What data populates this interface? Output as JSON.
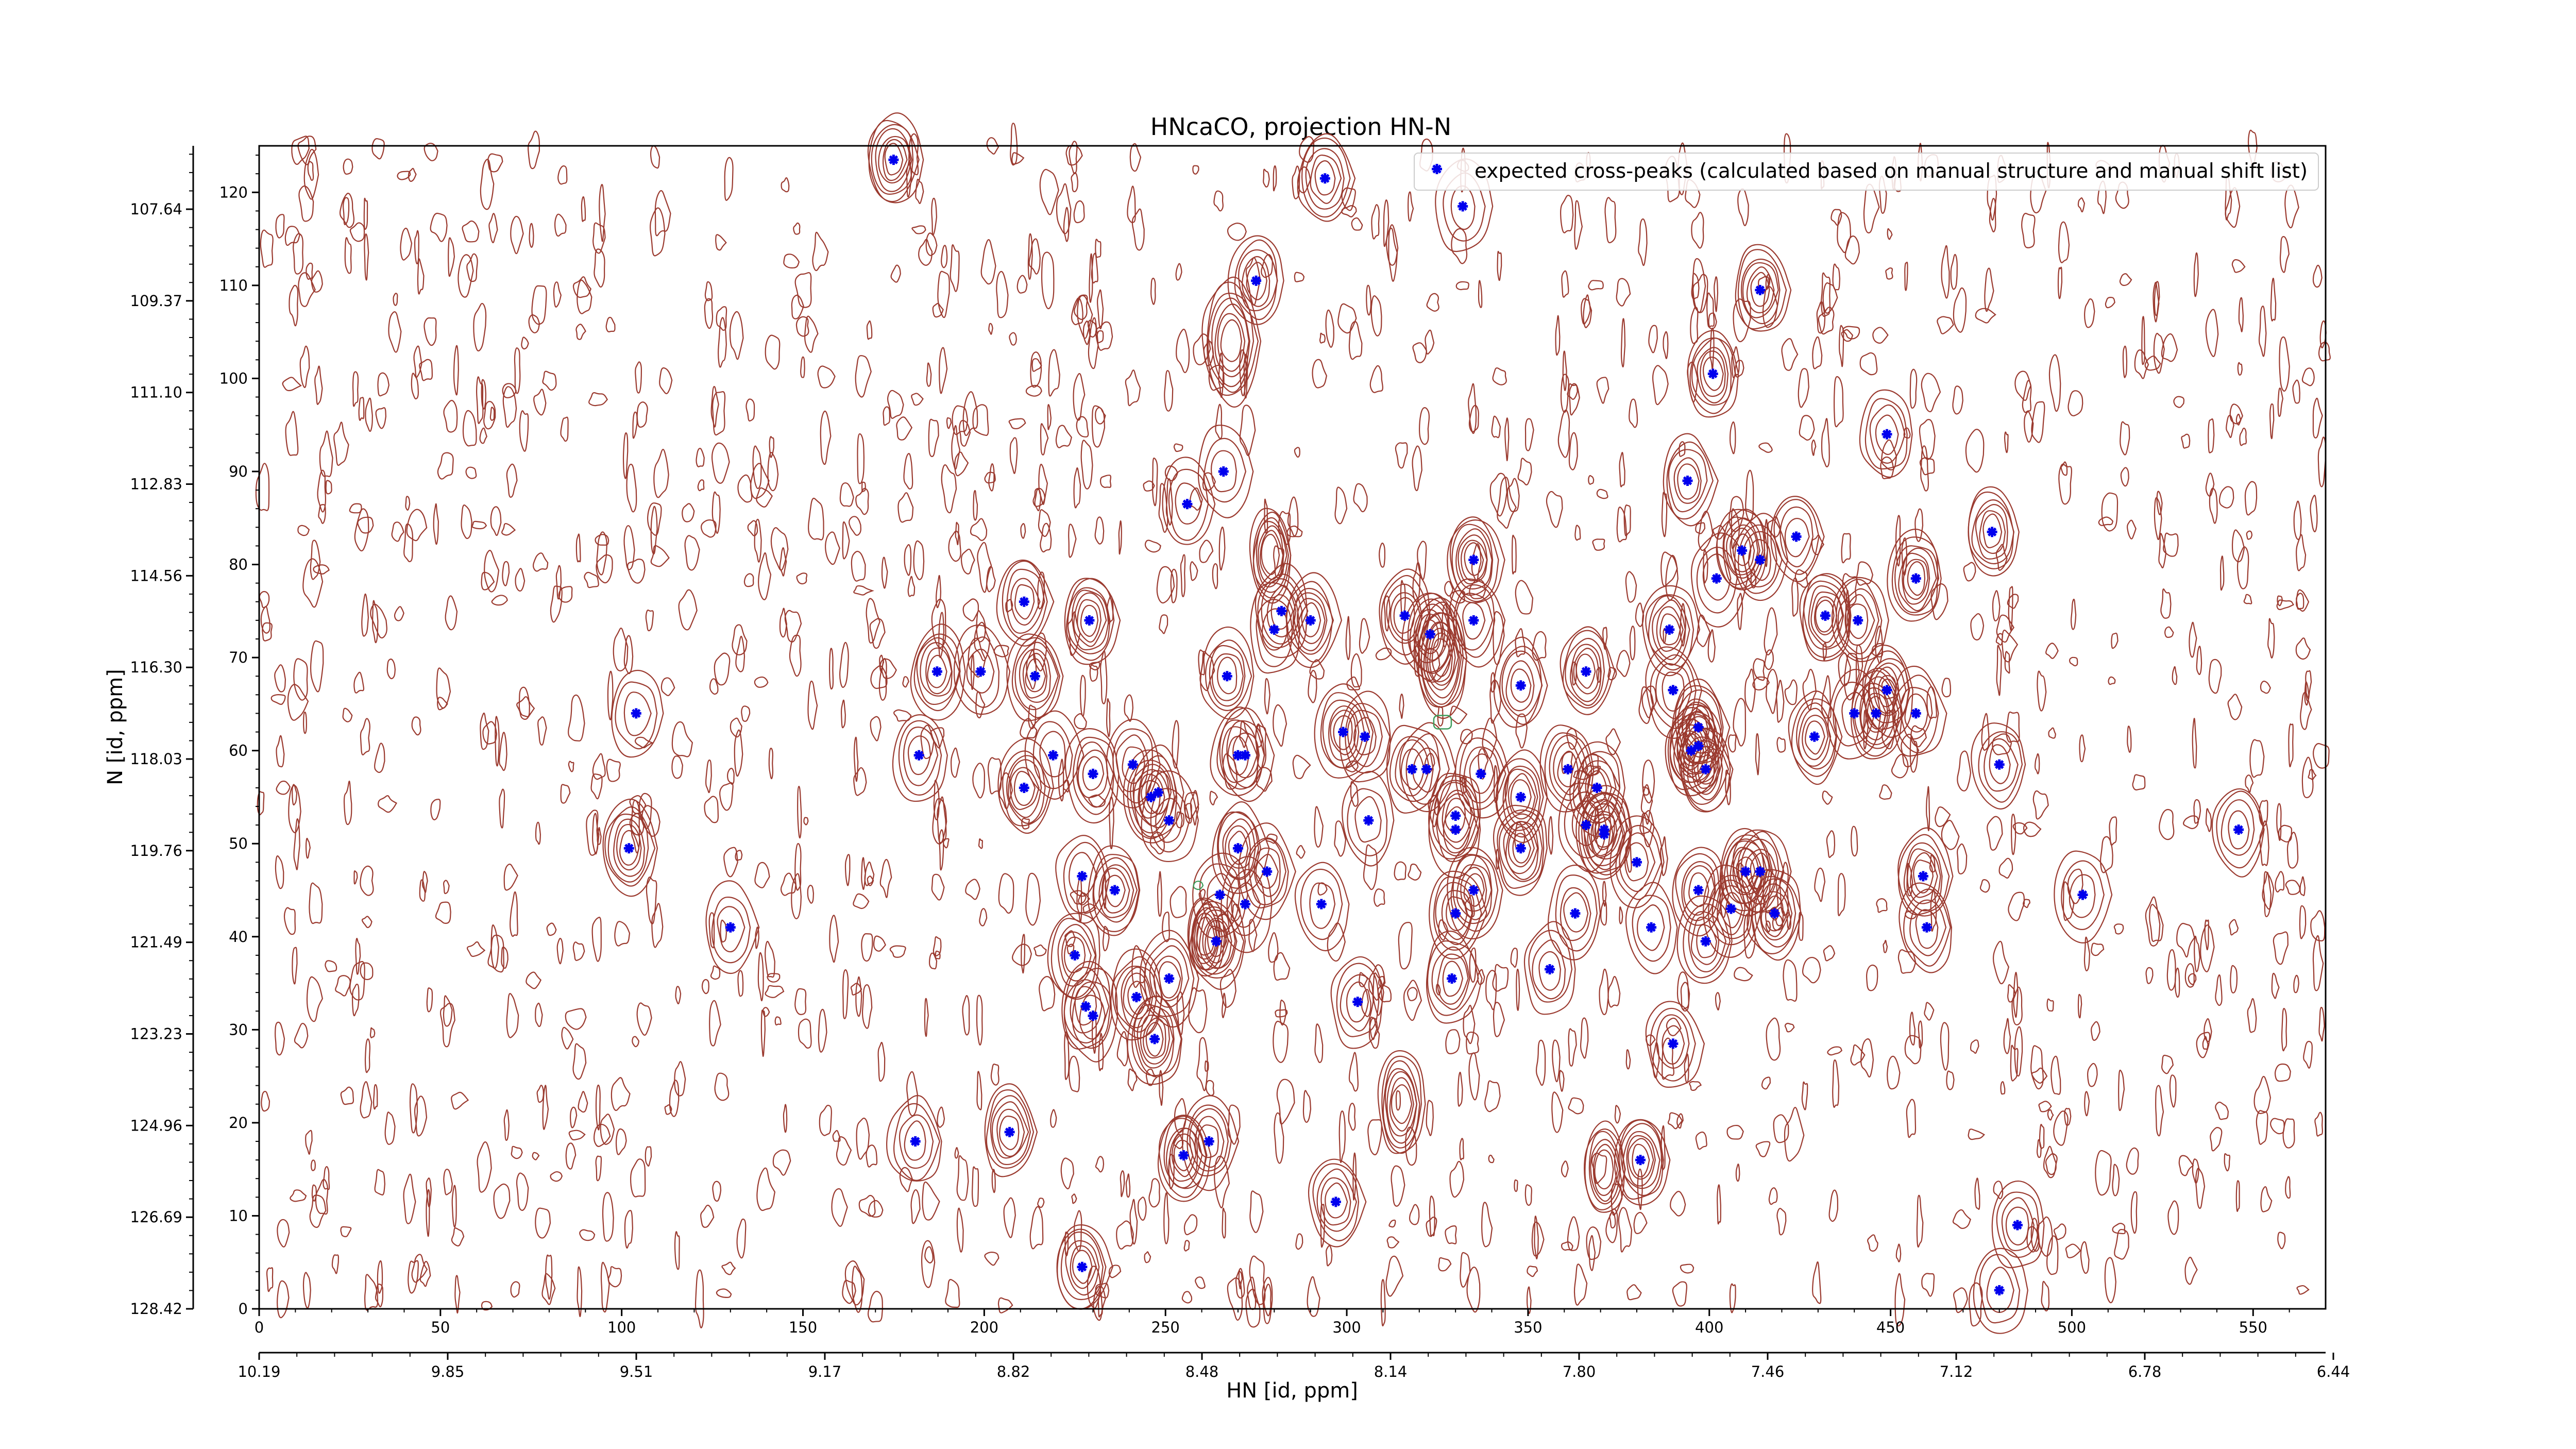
{
  "chart_data": {
    "type": "scatter",
    "title": "HNcaCO, projection HN-N",
    "xlabel": "HN [id, ppm]",
    "ylabel": "N [id, ppm]",
    "xlim": [
      0,
      570
    ],
    "ylim": [
      0,
      125
    ],
    "x_ticks": [
      "0",
      "50",
      "100",
      "150",
      "200",
      "250",
      "300",
      "350",
      "400",
      "450",
      "500",
      "550"
    ],
    "y_ticks": [
      "0",
      "10",
      "20",
      "30",
      "40",
      "50",
      "60",
      "70",
      "80",
      "90",
      "100",
      "110",
      "120"
    ],
    "x_secondary_ticks": [
      "10.19",
      "9.85",
      "9.51",
      "9.17",
      "8.82",
      "8.48",
      "8.14",
      "7.80",
      "7.46",
      "7.12",
      "6.78",
      "6.44"
    ],
    "y_secondary_ticks": [
      "128.42",
      "126.69",
      "124.96",
      "123.23",
      "121.49",
      "119.76",
      "118.03",
      "116.30",
      "114.56",
      "112.83",
      "111.10",
      "109.37",
      "107.64"
    ],
    "legend_position": "top-right",
    "grid": false,
    "colors": {
      "points": "#0000ee",
      "contours": "#9b3a2f",
      "contours_neg": "#3d9b5a"
    },
    "series": [
      {
        "name": "expected cross-peaks (calculated based on manual structure and manual shift list)",
        "points": [
          [
            175,
            123.5
          ],
          [
            294,
            121.5
          ],
          [
            332,
            118.5
          ],
          [
            275,
            110.5
          ],
          [
            414,
            109.5
          ],
          [
            401,
            100.5
          ],
          [
            449,
            94
          ],
          [
            394,
            89
          ],
          [
            266,
            90
          ],
          [
            256,
            86.5
          ],
          [
            478,
            83.5
          ],
          [
            424,
            83
          ],
          [
            409,
            81.5
          ],
          [
            414,
            80.5
          ],
          [
            335,
            80.5
          ],
          [
            457,
            78.5
          ],
          [
            402,
            78.5
          ],
          [
            211,
            76
          ],
          [
            229,
            74
          ],
          [
            282,
            75
          ],
          [
            316,
            74.5
          ],
          [
            323,
            72.5
          ],
          [
            280,
            73
          ],
          [
            290,
            74
          ],
          [
            335,
            74
          ],
          [
            389,
            73
          ],
          [
            432,
            74.5
          ],
          [
            441,
            74
          ],
          [
            187,
            68.5
          ],
          [
            199,
            68.5
          ],
          [
            214,
            68
          ],
          [
            267,
            68
          ],
          [
            366,
            68.5
          ],
          [
            348,
            67
          ],
          [
            390,
            66.5
          ],
          [
            449,
            66.5
          ],
          [
            104,
            64
          ],
          [
            440,
            64
          ],
          [
            446,
            64
          ],
          [
            457,
            64
          ],
          [
            429,
            61.5
          ],
          [
            397,
            62.5
          ],
          [
            397,
            60.5
          ],
          [
            395,
            60
          ],
          [
            299,
            62
          ],
          [
            305,
            61.5
          ],
          [
            182,
            59.5
          ],
          [
            219,
            59.5
          ],
          [
            270,
            59.5
          ],
          [
            272,
            59.5
          ],
          [
            318,
            58
          ],
          [
            322,
            58
          ],
          [
            337,
            57.5
          ],
          [
            361,
            58
          ],
          [
            399,
            58
          ],
          [
            230,
            57.5
          ],
          [
            241,
            58.5
          ],
          [
            211,
            56
          ],
          [
            369,
            56
          ],
          [
            246,
            55
          ],
          [
            248,
            55.5
          ],
          [
            348,
            55
          ],
          [
            251,
            52.5
          ],
          [
            306,
            52.5
          ],
          [
            330,
            53
          ],
          [
            366,
            52
          ],
          [
            371,
            51.5
          ],
          [
            371,
            51
          ],
          [
            330,
            51.5
          ],
          [
            102,
            49.5
          ],
          [
            270,
            49.5
          ],
          [
            348,
            49.5
          ],
          [
            380,
            48
          ],
          [
            278,
            47
          ],
          [
            410,
            47
          ],
          [
            414,
            47
          ],
          [
            227,
            46.5
          ],
          [
            236,
            45
          ],
          [
            335,
            45
          ],
          [
            397,
            45
          ],
          [
            459,
            46.5
          ],
          [
            503,
            44.5
          ],
          [
            265,
            44.5
          ],
          [
            272,
            43.5
          ],
          [
            293,
            43.5
          ],
          [
            406,
            43
          ],
          [
            418,
            42.5
          ],
          [
            330,
            42.5
          ],
          [
            363,
            42.5
          ],
          [
            384,
            41
          ],
          [
            130,
            41
          ],
          [
            460,
            41
          ],
          [
            264,
            39.5
          ],
          [
            399,
            39.5
          ],
          [
            225,
            38
          ],
          [
            356,
            36.5
          ],
          [
            251,
            35.5
          ],
          [
            329,
            35.5
          ],
          [
            242,
            33.5
          ],
          [
            303,
            33
          ],
          [
            228,
            32.5
          ],
          [
            230,
            31.5
          ],
          [
            247,
            29
          ],
          [
            390,
            28.5
          ],
          [
            546,
            51.5
          ],
          [
            480,
            58.5
          ],
          [
            181,
            18
          ],
          [
            207,
            19
          ],
          [
            262,
            18
          ],
          [
            255,
            16.5
          ],
          [
            381,
            16
          ],
          [
            297,
            11.5
          ],
          [
            485,
            9
          ],
          [
            227,
            4.5
          ],
          [
            480,
            2
          ]
        ]
      }
    ]
  },
  "legend": {
    "label": "expected cross-peaks (calculated based on manual structure and manual shift list)"
  }
}
